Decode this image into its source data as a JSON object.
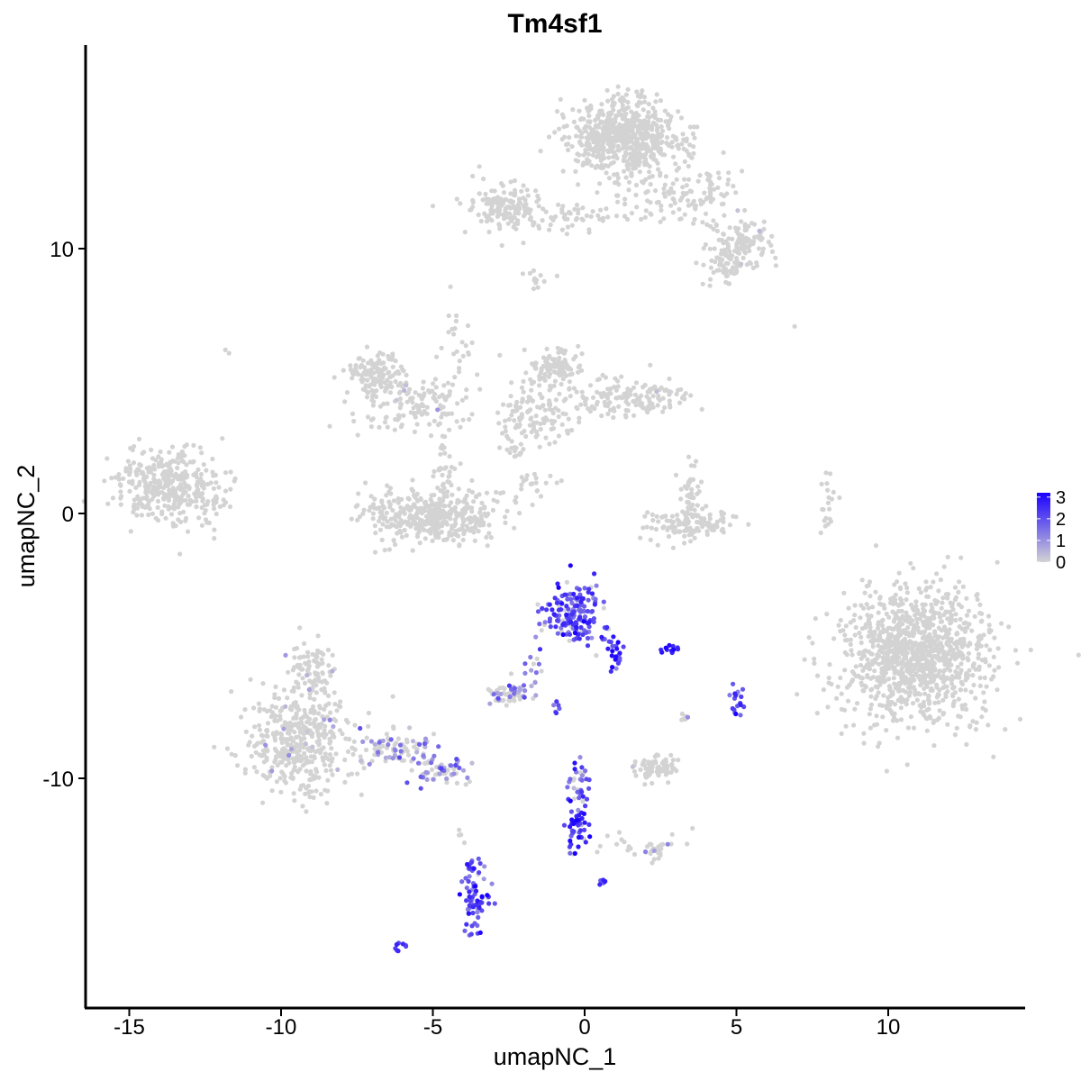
{
  "chart_data": {
    "type": "scatter",
    "title": "Tm4sf1",
    "xlabel": "umapNC_1",
    "ylabel": "umapNC_2",
    "xlim": [
      -16.4,
      14.3
    ],
    "ylim": [
      -18.1,
      17.8
    ],
    "x_ticks": [
      -15,
      -10,
      -5,
      0,
      5,
      10
    ],
    "x_tick_labels": [
      "-15",
      "-10",
      "-5",
      "0",
      "5",
      "10"
    ],
    "y_ticks": [
      10,
      0,
      -10
    ],
    "y_tick_labels": [
      "10",
      "0",
      "-10"
    ],
    "grid": false,
    "legend": {
      "placement": "right",
      "type": "colorbar",
      "breaks": [
        3,
        2,
        1,
        0
      ],
      "labels": [
        "3",
        "2",
        "1",
        "0"
      ],
      "low_color": "#d3d3d3",
      "high_color": "#1a00ff",
      "max_value": 3.2
    },
    "clusters": [
      {
        "x": -13.8,
        "y": 1.1,
        "sx": 0.9,
        "sy": 0.7,
        "n": 320,
        "expr": 0.02
      },
      {
        "x": -12.5,
        "y": 0.6,
        "sx": 0.5,
        "sy": 0.8,
        "n": 40,
        "expr": 0.02
      },
      {
        "x": -6.9,
        "y": 5.3,
        "sx": 0.45,
        "sy": 0.4,
        "n": 120,
        "expr": 0.03
      },
      {
        "x": -5.6,
        "y": 4.1,
        "sx": 0.9,
        "sy": 0.5,
        "n": 140,
        "expr": 0.02
      },
      {
        "x": -5.0,
        "y": -0.1,
        "sx": 1.1,
        "sy": 0.5,
        "n": 420,
        "expr": 0.0
      },
      {
        "x": -4.6,
        "y": 1.7,
        "sx": 0.2,
        "sy": 0.6,
        "n": 30,
        "expr": 0.0
      },
      {
        "x": -4.2,
        "y": 6.0,
        "sx": 0.3,
        "sy": 0.9,
        "n": 25,
        "expr": 0.0
      },
      {
        "x": -2.6,
        "y": 11.6,
        "sx": 0.6,
        "sy": 0.4,
        "n": 140,
        "expr": 0.0
      },
      {
        "x": -0.5,
        "y": 11.2,
        "sx": 1.3,
        "sy": 0.3,
        "n": 70,
        "expr": 0.0
      },
      {
        "x": -1.5,
        "y": 8.8,
        "sx": 0.3,
        "sy": 0.2,
        "n": 12,
        "expr": 0.0
      },
      {
        "x": 1.3,
        "y": 14.2,
        "sx": 0.9,
        "sy": 0.7,
        "n": 650,
        "expr": 0.0
      },
      {
        "x": 3.4,
        "y": 12.0,
        "sx": 0.9,
        "sy": 0.6,
        "n": 120,
        "expr": 0.0
      },
      {
        "x": 5.1,
        "y": 10.1,
        "sx": 0.6,
        "sy": 0.5,
        "n": 130,
        "expr": 0.02
      },
      {
        "x": 4.6,
        "y": 9.2,
        "sx": 0.3,
        "sy": 0.3,
        "n": 40,
        "expr": 0.0
      },
      {
        "x": -0.9,
        "y": 5.6,
        "sx": 0.4,
        "sy": 0.3,
        "n": 80,
        "expr": 0.02
      },
      {
        "x": -1.5,
        "y": 4.0,
        "sx": 0.6,
        "sy": 0.7,
        "n": 130,
        "expr": 0.03
      },
      {
        "x": 1.5,
        "y": 4.4,
        "sx": 1.0,
        "sy": 0.35,
        "n": 150,
        "expr": 0.02
      },
      {
        "x": -2.3,
        "y": 2.7,
        "sx": 0.2,
        "sy": 0.5,
        "n": 20,
        "expr": 0.0
      },
      {
        "x": -1.7,
        "y": 1.1,
        "sx": 0.5,
        "sy": 0.3,
        "n": 20,
        "expr": 0.0
      },
      {
        "x": 3.4,
        "y": -0.4,
        "sx": 0.7,
        "sy": 0.3,
        "n": 120,
        "expr": 0.0
      },
      {
        "x": 3.5,
        "y": 0.8,
        "sx": 0.2,
        "sy": 0.6,
        "n": 40,
        "expr": 0.0
      },
      {
        "x": 8.0,
        "y": 0.3,
        "sx": 0.15,
        "sy": 0.5,
        "n": 20,
        "expr": 0.0
      },
      {
        "x": 10.9,
        "y": -5.3,
        "sx": 1.2,
        "sy": 1.3,
        "n": 1100,
        "expr": 0.0
      },
      {
        "x": -0.4,
        "y": -3.8,
        "sx": 0.5,
        "sy": 0.6,
        "n": 170,
        "expr": 0.62
      },
      {
        "x": 0.9,
        "y": -5.1,
        "sx": 0.2,
        "sy": 0.4,
        "n": 25,
        "expr": 0.75
      },
      {
        "x": 2.8,
        "y": -5.1,
        "sx": 0.15,
        "sy": 0.1,
        "n": 12,
        "expr": 0.8
      },
      {
        "x": -9.4,
        "y": -8.6,
        "sx": 0.9,
        "sy": 0.9,
        "n": 420,
        "expr": 0.06
      },
      {
        "x": -9.0,
        "y": -6.0,
        "sx": 0.4,
        "sy": 0.7,
        "n": 90,
        "expr": 0.05
      },
      {
        "x": -6.2,
        "y": -8.9,
        "sx": 0.7,
        "sy": 0.35,
        "n": 90,
        "expr": 0.32
      },
      {
        "x": -4.7,
        "y": -9.8,
        "sx": 0.5,
        "sy": 0.3,
        "n": 55,
        "expr": 0.35
      },
      {
        "x": -2.4,
        "y": -6.8,
        "sx": 0.4,
        "sy": 0.2,
        "n": 55,
        "expr": 0.3
      },
      {
        "x": -1.8,
        "y": -6.0,
        "sx": 0.3,
        "sy": 0.3,
        "n": 15,
        "expr": 0.4
      },
      {
        "x": -0.9,
        "y": -7.3,
        "sx": 0.1,
        "sy": 0.1,
        "n": 6,
        "expr": 0.65
      },
      {
        "x": 5.0,
        "y": -7.3,
        "sx": 0.15,
        "sy": 0.3,
        "n": 18,
        "expr": 0.65
      },
      {
        "x": 3.3,
        "y": -7.7,
        "sx": 0.1,
        "sy": 0.1,
        "n": 6,
        "expr": 0.05
      },
      {
        "x": 2.4,
        "y": -9.6,
        "sx": 0.4,
        "sy": 0.2,
        "n": 70,
        "expr": 0.02
      },
      {
        "x": -0.2,
        "y": -10.3,
        "sx": 0.2,
        "sy": 0.6,
        "n": 35,
        "expr": 0.55
      },
      {
        "x": -0.2,
        "y": -11.8,
        "sx": 0.2,
        "sy": 0.4,
        "n": 40,
        "expr": 0.75
      },
      {
        "x": 1.5,
        "y": -12.4,
        "sx": 0.8,
        "sy": 0.3,
        "n": 25,
        "expr": 0.15
      },
      {
        "x": 2.3,
        "y": -12.7,
        "sx": 0.2,
        "sy": 0.2,
        "n": 20,
        "expr": 0.2
      },
      {
        "x": 0.6,
        "y": -13.9,
        "sx": 0.08,
        "sy": 0.08,
        "n": 5,
        "expr": 0.7
      },
      {
        "x": -3.6,
        "y": -14.6,
        "sx": 0.2,
        "sy": 0.6,
        "n": 70,
        "expr": 0.65
      },
      {
        "x": -3.8,
        "y": -13.3,
        "sx": 0.1,
        "sy": 0.2,
        "n": 10,
        "expr": 0.6
      },
      {
        "x": -4.1,
        "y": -12.2,
        "sx": 0.05,
        "sy": 0.3,
        "n": 4,
        "expr": 0.0
      },
      {
        "x": -6.1,
        "y": -16.3,
        "sx": 0.1,
        "sy": 0.08,
        "n": 8,
        "expr": 0.8
      },
      {
        "x": 6.8,
        "y": 7.1,
        "sx": 0.05,
        "sy": 0.05,
        "n": 1,
        "expr": 0.0
      },
      {
        "x": -11.8,
        "y": 6.1,
        "sx": 0.05,
        "sy": 0.05,
        "n": 2,
        "expr": 0.0
      }
    ]
  }
}
